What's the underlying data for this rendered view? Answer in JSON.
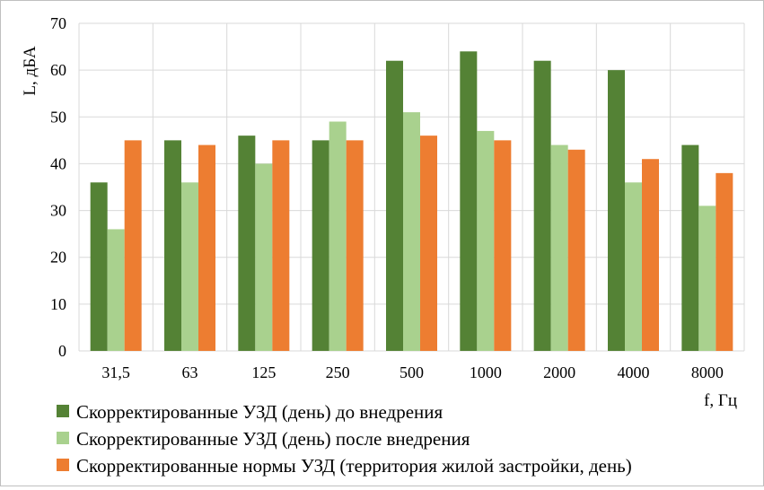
{
  "chart_data": {
    "type": "bar",
    "title": "",
    "xlabel": "f, Гц",
    "ylabel": "L, дБА",
    "ylim": [
      0,
      70
    ],
    "yticks": [
      "0",
      "10",
      "20",
      "30",
      "40",
      "50",
      "60",
      "70"
    ],
    "grid": true,
    "legend_position": "bottom-left",
    "categories": [
      "31,5",
      "63",
      "125",
      "250",
      "500",
      "1000",
      "2000",
      "4000",
      "8000"
    ],
    "series": [
      {
        "name": "Скорректированные УЗД (день) до внедрения",
        "color": "#548235",
        "values": [
          36,
          45,
          46,
          45,
          62,
          64,
          62,
          60,
          44
        ]
      },
      {
        "name": "Скорректированные УЗД (день) после внедрения",
        "color": "#a9d18e",
        "values": [
          26,
          36,
          40,
          49,
          51,
          47,
          44,
          36,
          31
        ]
      },
      {
        "name": "Скорректированные нормы УЗД (территория жилой застройки, день)",
        "color": "#ed7d31",
        "values": [
          45,
          44,
          45,
          45,
          46,
          45,
          43,
          41,
          38
        ]
      }
    ]
  }
}
